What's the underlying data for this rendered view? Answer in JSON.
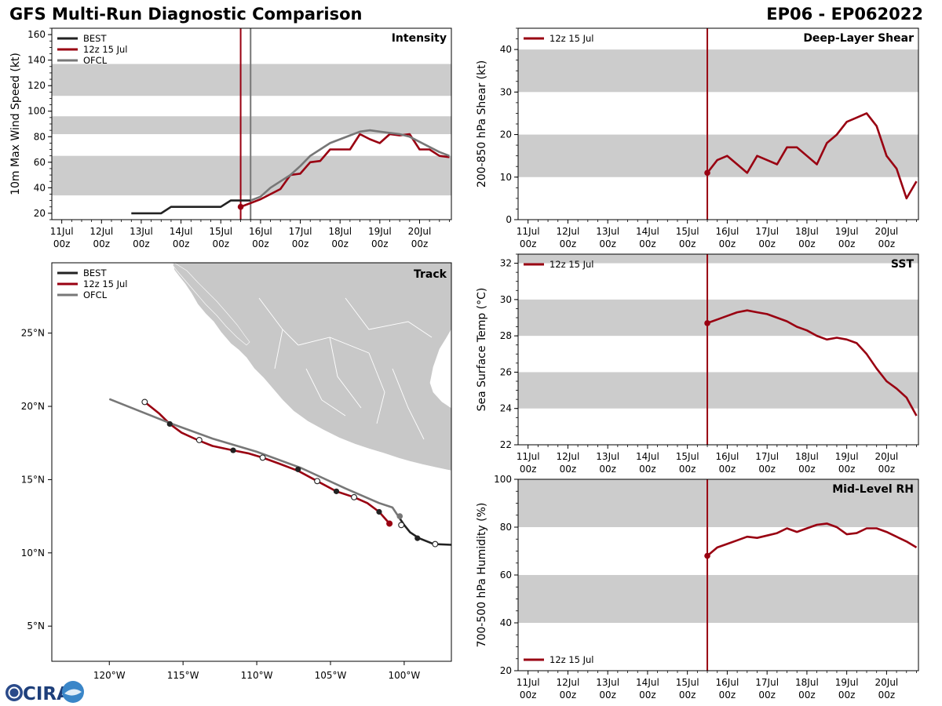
{
  "header": {
    "title": "GFS Multi-Run Diagnostic Comparison",
    "storm_id": "EP06 - EP062022"
  },
  "logo": {
    "text": "CIRA",
    "icon": "cira-logo-icon"
  },
  "colors": {
    "best": "#222222",
    "run": "#990011",
    "ofcl": "#777777",
    "band": "#cccccc",
    "land": "#c8c8c8"
  },
  "chart_data": [
    {
      "id": "intensity",
      "type": "line",
      "title": "Intensity",
      "ylabel": "10m Max Wind Speed (kt)",
      "xlim": [
        -0.25,
        9.8
      ],
      "ylim": [
        15,
        165
      ],
      "yticks": [
        20,
        40,
        60,
        80,
        100,
        120,
        140,
        160
      ],
      "bands": [
        [
          34,
          65
        ],
        [
          82,
          96
        ],
        [
          112,
          137
        ]
      ],
      "vlines": [
        {
          "x": 4.5,
          "color": "run"
        },
        {
          "x": 4.75,
          "color": "ofcl"
        }
      ],
      "legend": [
        "BEST",
        "12z 15 Jul",
        "OFCL"
      ],
      "series": [
        {
          "name": "BEST",
          "color": "best",
          "x": [
            1.75,
            2.0,
            2.25,
            2.5,
            2.75,
            3.0,
            3.25,
            3.5,
            3.75,
            4.0,
            4.25,
            4.5,
            4.75
          ],
          "y": [
            20,
            20,
            20,
            20,
            25,
            25,
            25,
            25,
            25,
            25,
            30,
            30,
            30
          ]
        },
        {
          "name": "12z 15 Jul",
          "color": "run",
          "marker_first": true,
          "x": [
            4.5,
            4.75,
            5.0,
            5.25,
            5.5,
            5.75,
            6.0,
            6.25,
            6.5,
            6.75,
            7.0,
            7.25,
            7.5,
            7.75,
            8.0,
            8.25,
            8.5,
            8.75,
            9.0,
            9.25,
            9.5,
            9.75
          ],
          "y": [
            25,
            28,
            31,
            35,
            39,
            50,
            51,
            60,
            61,
            70,
            70,
            70,
            82,
            78,
            75,
            82,
            81,
            82,
            70,
            70,
            65,
            64
          ]
        },
        {
          "name": "OFCL",
          "color": "ofcl",
          "x": [
            4.75,
            5.0,
            5.25,
            5.5,
            5.75,
            6.0,
            6.25,
            6.5,
            6.75,
            7.0,
            7.25,
            7.5,
            7.75,
            8.0,
            8.25,
            8.5,
            8.75,
            9.0,
            9.25,
            9.5,
            9.75
          ],
          "y": [
            30,
            33,
            40,
            45,
            50,
            57,
            65,
            70,
            75,
            78,
            81,
            84,
            85,
            84,
            83,
            82,
            80,
            76,
            72,
            68,
            65
          ]
        }
      ]
    },
    {
      "id": "shear",
      "type": "line",
      "title": "Deep-Layer Shear",
      "ylabel": "200-850 hPa Shear (kt)",
      "xlim": [
        -0.25,
        9.8
      ],
      "ylim": [
        0,
        45
      ],
      "yticks": [
        0,
        10,
        20,
        30,
        40
      ],
      "bands": [
        [
          10,
          20
        ],
        [
          30,
          40
        ]
      ],
      "vlines": [
        {
          "x": 4.5,
          "color": "run"
        }
      ],
      "legend": [
        "12z 15 Jul"
      ],
      "series": [
        {
          "name": "12z 15 Jul",
          "color": "run",
          "marker_first": true,
          "x": [
            4.5,
            4.75,
            5.0,
            5.25,
            5.5,
            5.75,
            6.0,
            6.25,
            6.5,
            6.75,
            7.0,
            7.25,
            7.5,
            7.75,
            8.0,
            8.25,
            8.5,
            8.75,
            9.0,
            9.25,
            9.5,
            9.75
          ],
          "y": [
            11,
            14,
            15,
            13,
            11,
            15,
            14,
            13,
            17,
            17,
            15,
            13,
            18,
            20,
            23,
            24,
            25,
            22,
            15,
            12,
            5,
            9
          ]
        }
      ]
    },
    {
      "id": "sst",
      "type": "line",
      "title": "SST",
      "ylabel": "Sea Surface Temp (°C)",
      "xlim": [
        -0.25,
        9.8
      ],
      "ylim": [
        22,
        32.5
      ],
      "yticks": [
        22,
        24,
        26,
        28,
        30,
        32
      ],
      "bands": [
        [
          24,
          26
        ],
        [
          28,
          30
        ],
        [
          32,
          33
        ]
      ],
      "vlines": [
        {
          "x": 4.5,
          "color": "run"
        }
      ],
      "legend": [
        "12z 15 Jul"
      ],
      "series": [
        {
          "name": "12z 15 Jul",
          "color": "run",
          "marker_first": true,
          "x": [
            4.5,
            4.75,
            5.0,
            5.25,
            5.5,
            5.75,
            6.0,
            6.25,
            6.5,
            6.75,
            7.0,
            7.25,
            7.5,
            7.75,
            8.0,
            8.25,
            8.5,
            8.75,
            9.0,
            9.25,
            9.5,
            9.75
          ],
          "y": [
            28.7,
            28.9,
            29.1,
            29.3,
            29.4,
            29.3,
            29.2,
            29.0,
            28.8,
            28.5,
            28.3,
            28.0,
            27.8,
            27.9,
            27.8,
            27.6,
            27.0,
            26.2,
            25.5,
            25.1,
            24.6,
            23.6
          ]
        }
      ]
    },
    {
      "id": "rh",
      "type": "line",
      "title": "Mid-Level RH",
      "ylabel": "700-500 hPa Humidity (%)",
      "xlim": [
        -0.25,
        9.8
      ],
      "ylim": [
        20,
        100
      ],
      "yticks": [
        20,
        40,
        60,
        80,
        100
      ],
      "bands": [
        [
          40,
          60
        ],
        [
          80,
          100
        ]
      ],
      "vlines": [
        {
          "x": 4.5,
          "color": "run"
        }
      ],
      "legend": [
        "12z 15 Jul"
      ],
      "legend_position": "bottom-left",
      "series": [
        {
          "name": "12z 15 Jul",
          "color": "run",
          "marker_first": true,
          "x": [
            4.5,
            4.75,
            5.0,
            5.25,
            5.5,
            5.75,
            6.0,
            6.25,
            6.5,
            6.75,
            7.0,
            7.25,
            7.5,
            7.75,
            8.0,
            8.25,
            8.5,
            8.75,
            9.0,
            9.25,
            9.5,
            9.75
          ],
          "y": [
            68,
            71.5,
            73,
            74.5,
            76,
            75.5,
            76.5,
            77.5,
            79.5,
            78,
            79.5,
            81,
            81.5,
            80,
            77,
            77.5,
            79.5,
            79.5,
            78,
            76,
            74,
            71.5
          ]
        }
      ]
    },
    {
      "id": "track",
      "type": "scatter",
      "title": "Track",
      "xlim": [
        -123.9,
        -96.8
      ],
      "ylim": [
        2.6,
        29.8
      ],
      "xticks": [
        -120,
        -115,
        -110,
        -105,
        -100
      ],
      "xtick_labels": [
        "120°W",
        "115°W",
        "110°W",
        "105°W",
        "100°W"
      ],
      "yticks": [
        5,
        10,
        15,
        20,
        25
      ],
      "ytick_labels": [
        "5°N",
        "10°N",
        "15°N",
        "20°N",
        "25°N"
      ],
      "legend": [
        "BEST",
        "12z 15 Jul",
        "OFCL"
      ],
      "series": [
        {
          "name": "BEST",
          "color": "best",
          "lon": [
            -96.8,
            -98.0,
            -99.0,
            -99.6,
            -100.0,
            -100.4
          ],
          "lat": [
            10.55,
            10.6,
            11.0,
            11.4,
            11.9,
            12.5
          ]
        },
        {
          "name": "12z 15 Jul",
          "color": "run",
          "lon": [
            -101.0,
            -101.7,
            -102.5,
            -103.4,
            -104.6,
            -105.9,
            -107.2,
            -108.5,
            -109.6,
            -110.6,
            -111.6,
            -113.0,
            -114.0,
            -115.1,
            -115.9,
            -116.6,
            -117.1,
            -117.6
          ],
          "lat": [
            12.0,
            12.8,
            13.4,
            13.8,
            14.2,
            14.9,
            15.6,
            16.1,
            16.5,
            16.8,
            17.0,
            17.3,
            17.7,
            18.2,
            18.8,
            19.5,
            19.9,
            20.3
          ]
        },
        {
          "name": "OFCL",
          "color": "ofcl",
          "lon": [
            -100.4,
            -100.8,
            -101.7,
            -104.0,
            -107.0,
            -110.0,
            -113.0,
            -116.0,
            -120.0
          ],
          "lat": [
            12.5,
            13.1,
            13.4,
            14.4,
            15.8,
            16.9,
            17.8,
            18.9,
            20.5
          ]
        }
      ],
      "markers_filled": {
        "lon": [
          -99.1,
          -101.7,
          -104.6,
          -107.2,
          -111.6,
          -115.9
        ],
        "lat": [
          11.0,
          12.8,
          14.2,
          15.7,
          17.0,
          18.8
        ]
      },
      "markers_open": {
        "lon": [
          -97.9,
          -100.2,
          -103.4,
          -105.9,
          -109.6,
          -113.9,
          -117.6
        ],
        "lat": [
          10.6,
          11.9,
          13.8,
          14.9,
          16.5,
          17.7,
          20.3
        ]
      },
      "marker_start": {
        "lon": -101.0,
        "lat": 12.0
      },
      "ofcl_marker": {
        "lon": -100.3,
        "lat": 12.5
      }
    }
  ],
  "time_axis": {
    "ticks": [
      0,
      1,
      2,
      3,
      4,
      5,
      6,
      7,
      8,
      9
    ],
    "labels": [
      "11Jul",
      "12Jul",
      "13Jul",
      "14Jul",
      "15Jul",
      "16Jul",
      "17Jul",
      "18Jul",
      "19Jul",
      "20Jul"
    ],
    "sublabel": "00z"
  }
}
